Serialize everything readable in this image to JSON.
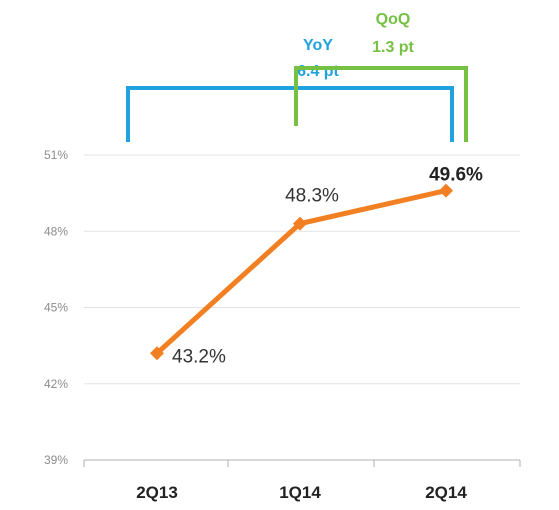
{
  "chart_data": {
    "type": "line",
    "categories": [
      "2Q13",
      "1Q14",
      "2Q14"
    ],
    "values": [
      43.2,
      48.3,
      49.6
    ],
    "data_labels": [
      "43.2%",
      "48.3%",
      "49.6%"
    ],
    "ylim": [
      39,
      51
    ],
    "yticks": [
      39,
      42,
      45,
      48,
      51
    ],
    "ytick_labels": [
      "39%",
      "42%",
      "45%",
      "48%",
      "51%"
    ],
    "grid": true,
    "line_color": "#f28022",
    "annotations": [
      {
        "label": "YoY",
        "value": "6.4 pt",
        "from": "2Q13",
        "to": "2Q14",
        "color": "#1fa2de"
      },
      {
        "label": "QoQ",
        "value": "1.3 pt",
        "from": "1Q14",
        "to": "2Q14",
        "color": "#76c043"
      }
    ]
  }
}
